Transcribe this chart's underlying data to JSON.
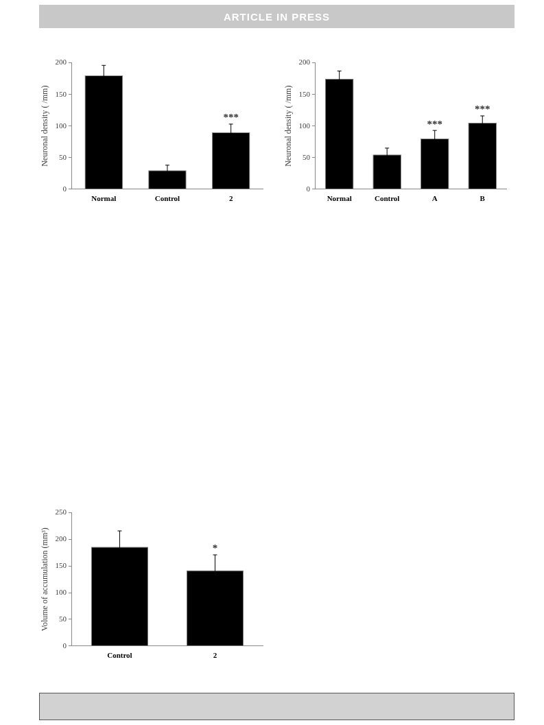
{
  "chart_data": [
    {
      "type": "bar",
      "categories": [
        "Normal",
        "Control",
        "2"
      ],
      "values": [
        180,
        30,
        90
      ],
      "errors": [
        16,
        8,
        13
      ],
      "color": "#000000",
      "ylabel": "Neuronal density ( /mm)",
      "ylim": [
        0,
        200
      ],
      "yticks": [
        0,
        50,
        100,
        150,
        200
      ],
      "grid": false,
      "legend": false,
      "annotations": [
        "ARTICLE IN PRESS",
        {
          "text": "***",
          "x": "2",
          "y": 103
        }
      ]
    },
    {
      "type": "bar",
      "categories": [
        "Normal",
        "Control",
        "A",
        "B"
      ],
      "values": [
        175,
        55,
        80,
        105
      ],
      "errors": [
        12,
        10,
        13,
        11
      ],
      "color": "#000000",
      "ylabel": "Neuronal density ( /mm)",
      "ylim": [
        0,
        200
      ],
      "yticks": [
        0,
        50,
        100,
        150,
        200
      ],
      "grid": false,
      "legend": false,
      "annotations": [
        {
          "text": "***",
          "x": "A",
          "y": 93
        },
        {
          "text": "***",
          "x": "B",
          "y": 116
        }
      ]
    },
    {
      "type": "bar",
      "categories": [
        "Control",
        "2"
      ],
      "values": [
        186,
        142
      ],
      "errors": [
        30,
        29
      ],
      "color": "#000000",
      "ylabel": "Volume of accumulation (mm³)",
      "ylim": [
        0,
        250
      ],
      "yticks": [
        0,
        50,
        100,
        150,
        200,
        250
      ],
      "grid": false,
      "legend": false,
      "annotations": [
        {
          "text": "*",
          "x": "2",
          "y": 171
        }
      ]
    }
  ]
}
